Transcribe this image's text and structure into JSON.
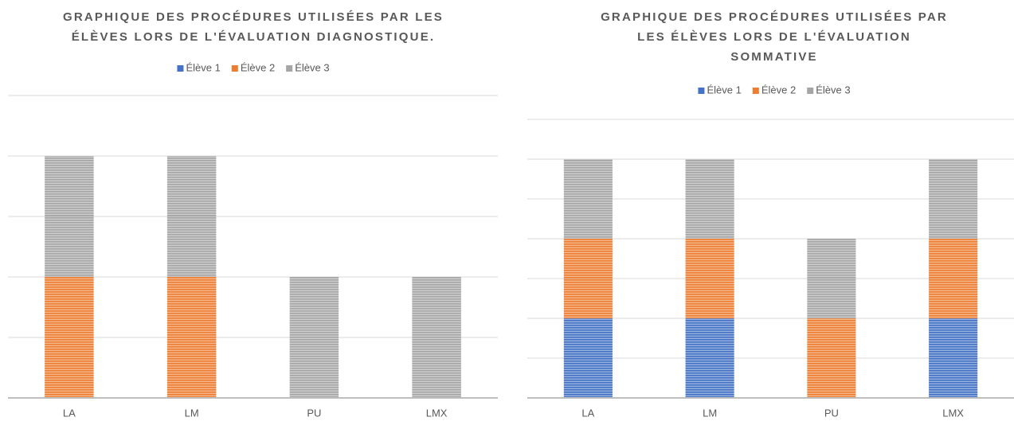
{
  "chart_data": [
    {
      "type": "stacked_bar",
      "title": "GRAPHIQUE DES PROCÉDURES UTILISÉES PAR LES ÉLÈVES LORS DE L'ÉVALUATION DIAGNOSTIQUE.",
      "categories": [
        "LA",
        "LM",
        "PU",
        "LMX"
      ],
      "series": [
        {
          "name": "Élève 1",
          "color": "#4472c4",
          "values": [
            0,
            0,
            0,
            0
          ]
        },
        {
          "name": "Élève 2",
          "color": "#ed7d31",
          "values": [
            1,
            1,
            0,
            0
          ]
        },
        {
          "name": "Élève 3",
          "color": "#a5a5a5",
          "values": [
            1,
            1,
            1,
            1
          ]
        }
      ],
      "ylim": [
        0,
        2.5
      ],
      "yticks": [
        0,
        0.5,
        1,
        1.5,
        2,
        2.5
      ],
      "grid": true,
      "legend": "top"
    },
    {
      "type": "stacked_bar",
      "title": "GRAPHIQUE DES PROCÉDURES UTILISÉES PAR LES ÉLÈVES LORS DE L'ÉVALUATION SOMMATIVE",
      "categories": [
        "LA",
        "LM",
        "PU",
        "LMX"
      ],
      "series": [
        {
          "name": "Élève 1",
          "color": "#4472c4",
          "values": [
            1,
            1,
            0,
            1
          ]
        },
        {
          "name": "Élève 2",
          "color": "#ed7d31",
          "values": [
            1,
            1,
            1,
            1
          ]
        },
        {
          "name": "Élève 3",
          "color": "#a5a5a5",
          "values": [
            1,
            1,
            1,
            1
          ]
        }
      ],
      "ylim": [
        0,
        3.5
      ],
      "yticks": [
        0,
        0.5,
        1,
        1.5,
        2,
        2.5,
        3,
        3.5
      ],
      "grid": true,
      "legend": "top"
    }
  ]
}
